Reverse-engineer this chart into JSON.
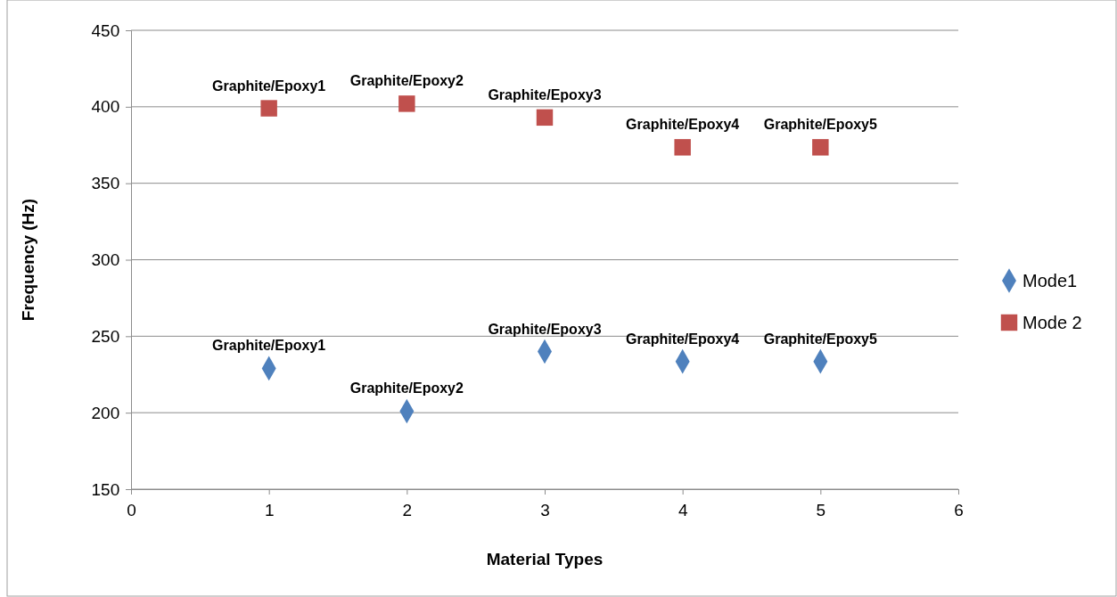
{
  "chart_data": {
    "type": "scatter",
    "xlabel": "Material Types",
    "ylabel": "Frequency (Hz)",
    "xlim": [
      0,
      6
    ],
    "xticks": [
      0,
      1,
      2,
      3,
      4,
      5,
      6
    ],
    "ylim": [
      150,
      450
    ],
    "yticks": [
      150,
      200,
      250,
      300,
      350,
      400,
      450
    ],
    "grid": "y",
    "legend": "right",
    "series": [
      {
        "name": "Mode1",
        "color": "#4f81bd",
        "marker": "diamond",
        "x": [
          1,
          2,
          3,
          4,
          5
        ],
        "values": [
          229,
          201,
          240,
          233.5,
          233.5
        ]
      },
      {
        "name": "Mode 2",
        "color": "#c0504d",
        "marker": "square",
        "x": [
          1,
          2,
          3,
          4,
          5
        ],
        "values": [
          399,
          402,
          393,
          373.5,
          373.5
        ]
      }
    ],
    "annotations": [
      {
        "text": "Graphite/Epoxy1",
        "x": 1,
        "y": 229
      },
      {
        "text": "Graphite/Epoxy2",
        "x": 2,
        "y": 201
      },
      {
        "text": "Graphite/Epoxy3",
        "x": 3,
        "y": 240
      },
      {
        "text": "Graphite/Epoxy4",
        "x": 4,
        "y": 233.5
      },
      {
        "text": "Graphite/Epoxy5",
        "x": 5,
        "y": 233.5
      },
      {
        "text": "Graphite/Epoxy1",
        "x": 1,
        "y": 399
      },
      {
        "text": "Graphite/Epoxy2",
        "x": 2,
        "y": 402
      },
      {
        "text": "Graphite/Epoxy3",
        "x": 3,
        "y": 393
      },
      {
        "text": "Graphite/Epoxy4",
        "x": 4,
        "y": 373.5
      },
      {
        "text": "Graphite/Epoxy5",
        "x": 5,
        "y": 373.5
      }
    ]
  }
}
